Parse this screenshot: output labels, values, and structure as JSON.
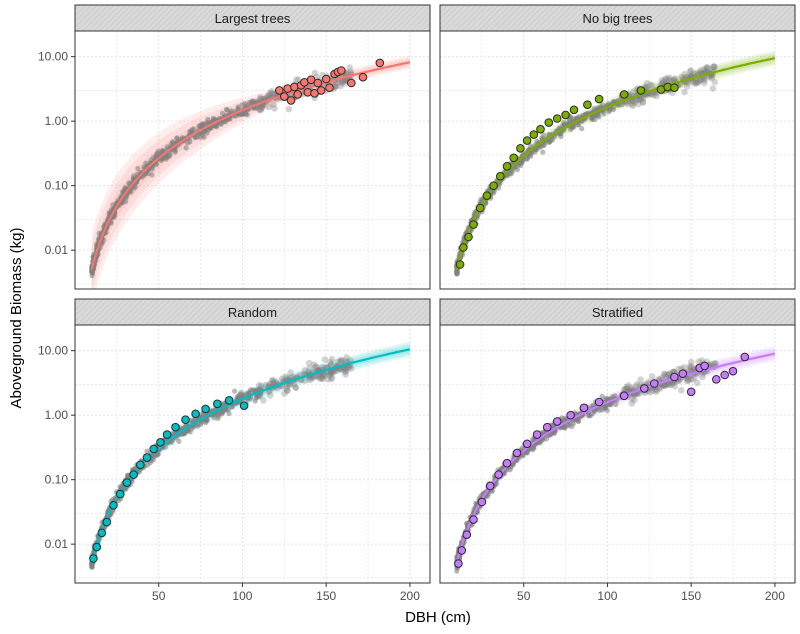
{
  "chart_data": {
    "type": "scatter",
    "xlabel": "DBH (cm)",
    "ylabel": "Aboveground Biomass (kg)",
    "y_scale": "log10",
    "xlim": [
      0,
      212
    ],
    "ylim": [
      0.0025,
      25
    ],
    "x_ticks": [
      50,
      100,
      150,
      200
    ],
    "x_tick_labels": [
      "50",
      "100",
      "150",
      "200"
    ],
    "y_ticks": [
      0.01,
      0.1,
      1,
      10
    ],
    "y_tick_labels": [
      "0.01",
      "0.10",
      "1.00",
      "10.00"
    ],
    "grid": true,
    "legend": "none",
    "background_points_color": "#808080",
    "panels": [
      {
        "name": "Largest trees",
        "color": "#F8766D",
        "fit": {
          "x_start": 10,
          "x_end": 200,
          "y_at_10": 0.005,
          "y_at_200": 8.2
        },
        "sample_points": [
          [
            122,
            3.0
          ],
          [
            125,
            2.4
          ],
          [
            127,
            3.2
          ],
          [
            129,
            2.1
          ],
          [
            131,
            3.4
          ],
          [
            133,
            2.6
          ],
          [
            135,
            3.6
          ],
          [
            137,
            4.0
          ],
          [
            139,
            2.8
          ],
          [
            141,
            4.4
          ],
          [
            143,
            2.7
          ],
          [
            145,
            3.9
          ],
          [
            147,
            3.0
          ],
          [
            150,
            4.5
          ],
          [
            152,
            3.3
          ],
          [
            155,
            5.4
          ],
          [
            157,
            5.8
          ],
          [
            159,
            6.1
          ],
          [
            165,
            3.9
          ],
          [
            172,
            4.8
          ],
          [
            182,
            8.0
          ]
        ]
      },
      {
        "name": "No big trees",
        "color": "#7CAE00",
        "fit": {
          "x_start": 10,
          "x_end": 200,
          "y_at_10": 0.005,
          "y_at_200": 9.5
        },
        "sample_points": [
          [
            12,
            0.006
          ],
          [
            14,
            0.011
          ],
          [
            17,
            0.016
          ],
          [
            20,
            0.025
          ],
          [
            24,
            0.045
          ],
          [
            28,
            0.07
          ],
          [
            32,
            0.1
          ],
          [
            36,
            0.14
          ],
          [
            40,
            0.2
          ],
          [
            44,
            0.27
          ],
          [
            48,
            0.38
          ],
          [
            52,
            0.5
          ],
          [
            56,
            0.62
          ],
          [
            60,
            0.75
          ],
          [
            65,
            0.95
          ],
          [
            70,
            1.1
          ],
          [
            75,
            1.25
          ],
          [
            80,
            1.5
          ],
          [
            88,
            1.8
          ],
          [
            95,
            2.2
          ],
          [
            110,
            2.6
          ],
          [
            120,
            3.0
          ],
          [
            132,
            3.1
          ],
          [
            136,
            3.4
          ],
          [
            140,
            3.3
          ]
        ]
      },
      {
        "name": "Random",
        "color": "#00BFC4",
        "fit": {
          "x_start": 10,
          "x_end": 200,
          "y_at_10": 0.005,
          "y_at_200": 10.5
        },
        "sample_points": [
          [
            11,
            0.006
          ],
          [
            13,
            0.009
          ],
          [
            16,
            0.015
          ],
          [
            19,
            0.022
          ],
          [
            23,
            0.04
          ],
          [
            27,
            0.06
          ],
          [
            31,
            0.09
          ],
          [
            35,
            0.12
          ],
          [
            39,
            0.17
          ],
          [
            43,
            0.22
          ],
          [
            47,
            0.3
          ],
          [
            51,
            0.38
          ],
          [
            55,
            0.5
          ],
          [
            60,
            0.65
          ],
          [
            66,
            0.85
          ],
          [
            72,
            1.05
          ],
          [
            78,
            1.25
          ],
          [
            85,
            1.5
          ],
          [
            92,
            1.7
          ],
          [
            101,
            1.4
          ]
        ]
      },
      {
        "name": "Stratified",
        "color": "#C77CFF",
        "fit": {
          "x_start": 10,
          "x_end": 200,
          "y_at_10": 0.005,
          "y_at_200": 9.0
        },
        "sample_points": [
          [
            11,
            0.005
          ],
          [
            13,
            0.008
          ],
          [
            16,
            0.014
          ],
          [
            20,
            0.024
          ],
          [
            25,
            0.045
          ],
          [
            30,
            0.08
          ],
          [
            35,
            0.12
          ],
          [
            40,
            0.18
          ],
          [
            46,
            0.26
          ],
          [
            52,
            0.36
          ],
          [
            58,
            0.5
          ],
          [
            64,
            0.65
          ],
          [
            70,
            0.8
          ],
          [
            78,
            1.0
          ],
          [
            86,
            1.3
          ],
          [
            95,
            1.6
          ],
          [
            110,
            2.0
          ],
          [
            122,
            2.6
          ],
          [
            128,
            3.1
          ],
          [
            140,
            3.9
          ],
          [
            145,
            4.4
          ],
          [
            150,
            2.3
          ],
          [
            155,
            5.4
          ],
          [
            158,
            5.8
          ],
          [
            165,
            3.6
          ],
          [
            170,
            4.2
          ],
          [
            175,
            4.8
          ],
          [
            182,
            8.0
          ]
        ]
      }
    ]
  }
}
